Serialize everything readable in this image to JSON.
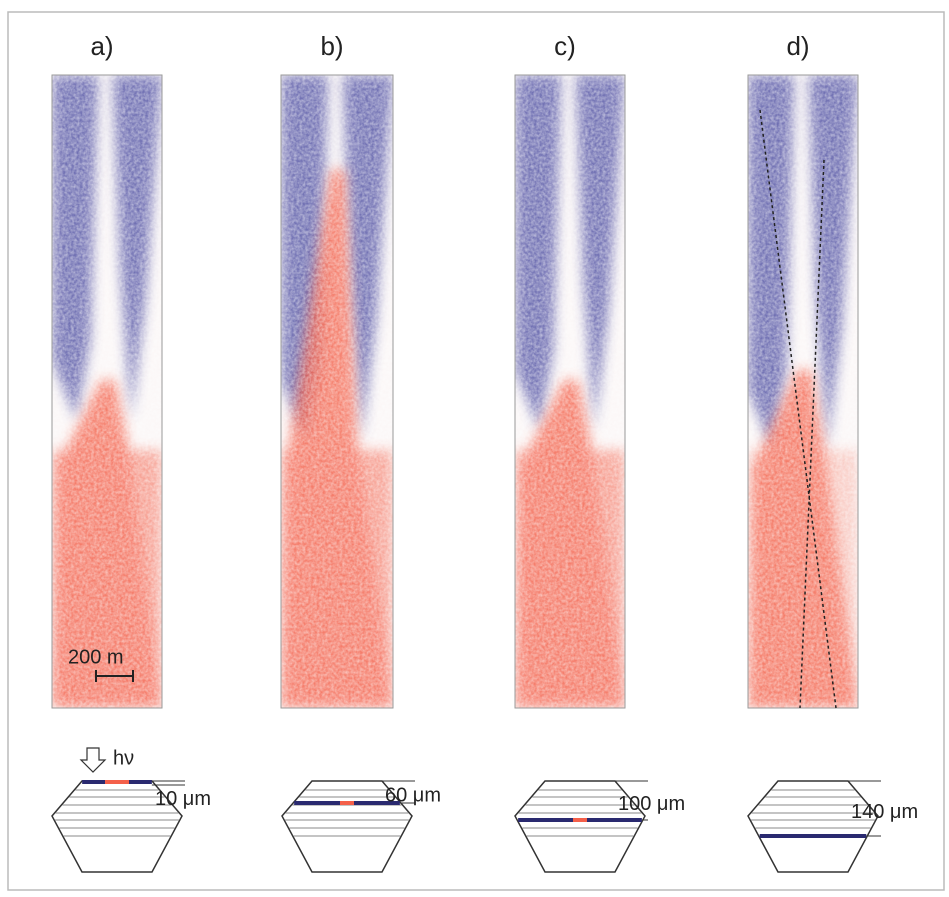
{
  "panels": [
    {
      "label": "a)",
      "layer": "10 μm"
    },
    {
      "label": "b)",
      "layer": "60 μm"
    },
    {
      "label": "c)",
      "layer": "100 μm"
    },
    {
      "label": "d)",
      "layer": "140 μm"
    }
  ],
  "scale_bar": "200 m",
  "photon": "hν"
}
